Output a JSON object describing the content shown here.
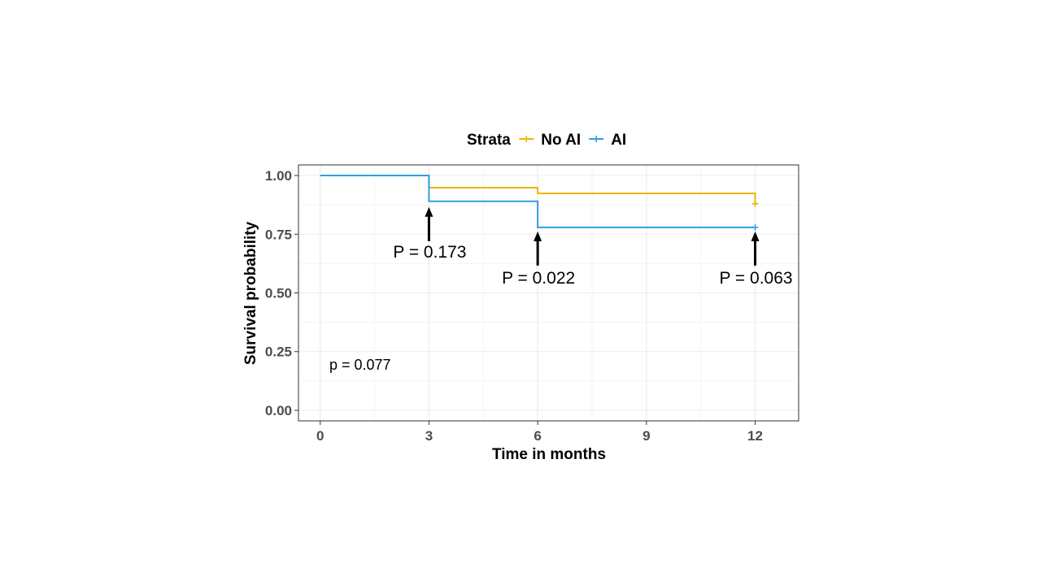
{
  "chart_data": {
    "type": "line",
    "subtype": "kaplan-meier step survival curve",
    "xlabel": "Time in months",
    "ylabel": "Survival probability",
    "xlim": [
      -0.6,
      13.2
    ],
    "ylim": [
      -0.045,
      1.045
    ],
    "x_ticks": [
      0,
      3,
      6,
      9,
      12
    ],
    "x_tick_labels": [
      "0",
      "3",
      "6",
      "9",
      "12"
    ],
    "y_ticks": [
      0,
      0.25,
      0.5,
      0.75,
      1.0
    ],
    "y_tick_labels": [
      "0.00",
      "0.25",
      "0.50",
      "0.75",
      "1.00"
    ],
    "grid": true,
    "legend": {
      "title": "Strata",
      "position": "top",
      "entries": [
        "No AI",
        "AI"
      ]
    },
    "series": [
      {
        "name": "No AI",
        "color": "#E7B800",
        "steps": [
          {
            "x": 0,
            "y": 1.0
          },
          {
            "x": 3,
            "y": 0.948
          },
          {
            "x": 6,
            "y": 0.924
          },
          {
            "x": 12,
            "y": 0.88
          }
        ],
        "censor": [
          {
            "x": 12,
            "y": 0.88
          }
        ]
      },
      {
        "name": "AI",
        "color": "#2E9FDF",
        "steps": [
          {
            "x": 0,
            "y": 1.0
          },
          {
            "x": 3,
            "y": 0.89
          },
          {
            "x": 6,
            "y": 0.779
          },
          {
            "x": 12,
            "y": 0.779
          }
        ],
        "censor": [
          {
            "x": 12,
            "y": 0.779
          }
        ]
      }
    ],
    "annotations": [
      {
        "text": "P = 0.173",
        "x": 3
      },
      {
        "text": "P = 0.022",
        "x": 6
      },
      {
        "text": "P = 0.063",
        "x": 12
      }
    ],
    "overall_pvalue": "p = 0.077"
  }
}
